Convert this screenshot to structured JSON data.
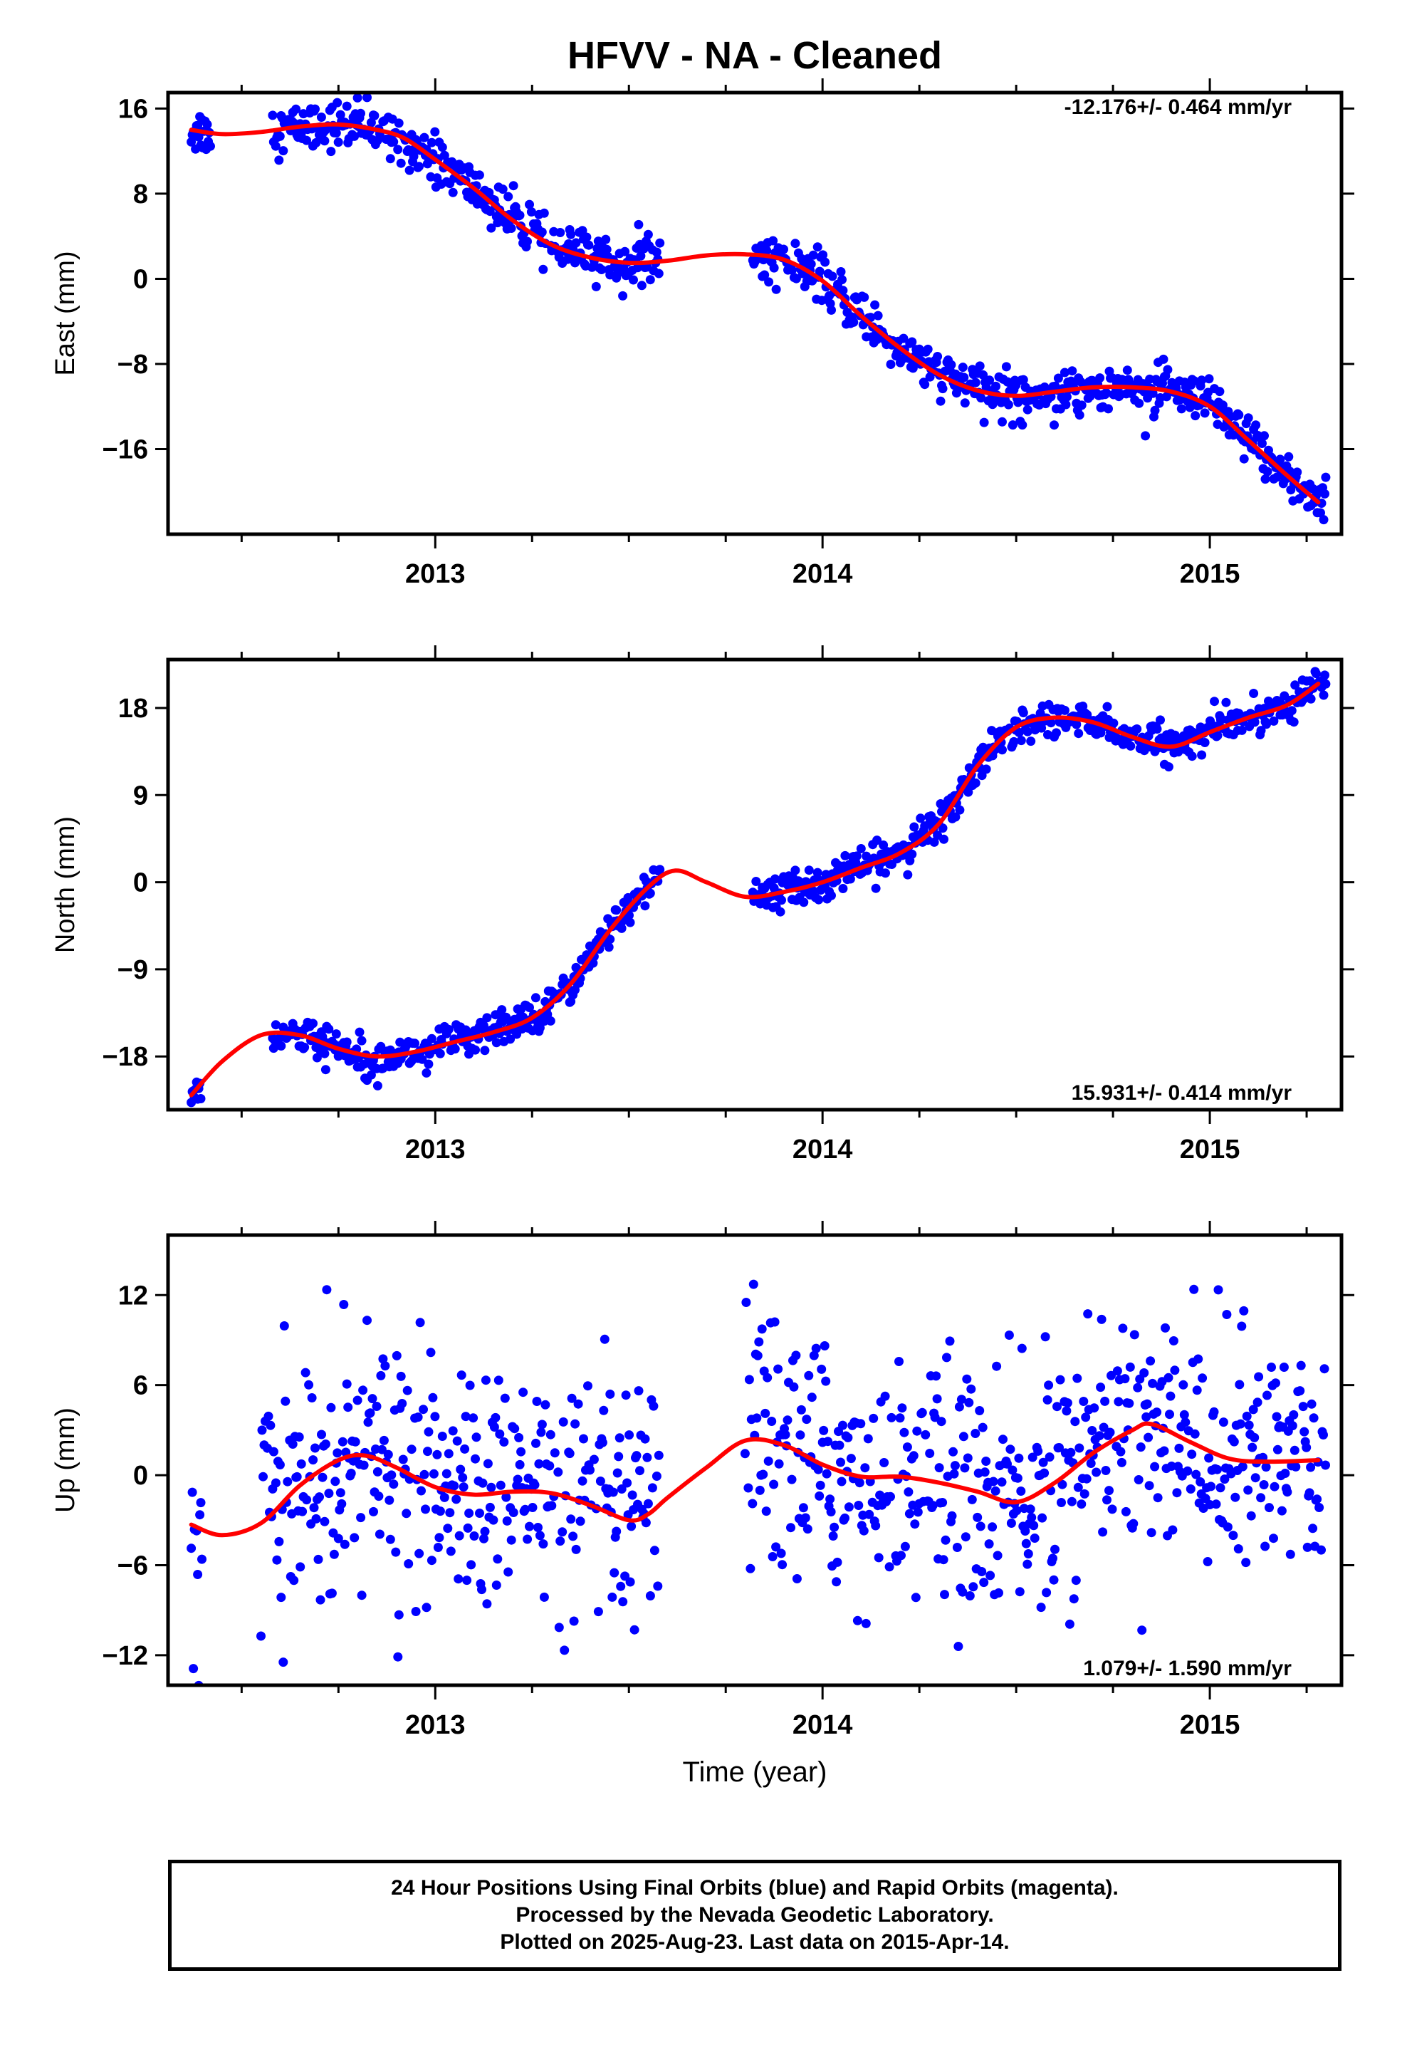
{
  "title": "HFVV  - NA - Cleaned",
  "footer": {
    "line1": "24 Hour Positions Using Final Orbits (blue) and Rapid Orbits (magenta).",
    "line2": "Processed by the Nevada Geodetic Laboratory.",
    "line3": "Plotted on 2025-Aug-23. Last data on 2015-Apr-14."
  },
  "colors": {
    "points": "#0000ff",
    "fit": "#ff0000",
    "axes": "#000000"
  },
  "chart_data": [
    {
      "type": "scatter",
      "id": "east",
      "ylabel": "East (mm)",
      "xlabel": "",
      "rate_label": "-12.176+/- 0.464 mm/yr",
      "rate_position": "top-right",
      "xlim": [
        2012.31,
        2015.34
      ],
      "ylim": [
        -24,
        17.5
      ],
      "yticks": [
        16,
        8,
        0,
        -8,
        -16
      ],
      "xticks": [
        2013,
        2014,
        2015
      ],
      "minor_xticks": [
        2012.5,
        2012.75,
        2013.25,
        2013.5,
        2013.75,
        2014.25,
        2014.5,
        2014.75,
        2015.25
      ],
      "data_segments": [
        [
          2012.37,
          2012.42
        ],
        [
          2012.58,
          2013.58
        ],
        [
          2013.82,
          2015.3
        ]
      ],
      "noise_sd": 1.1,
      "fit_curve": {
        "x": [
          2012.37,
          2012.45,
          2012.55,
          2012.65,
          2012.75,
          2012.85,
          2012.92,
          2013.0,
          2013.1,
          2013.2,
          2013.3,
          2013.4,
          2013.5,
          2013.6,
          2013.7,
          2013.8,
          2013.9,
          2014.0,
          2014.1,
          2014.2,
          2014.3,
          2014.4,
          2014.5,
          2014.6,
          2014.7,
          2014.8,
          2014.9,
          2015.0,
          2015.1,
          2015.2,
          2015.28
        ],
        "y": [
          14.0,
          13.6,
          13.8,
          14.3,
          14.5,
          14.0,
          13.2,
          11.2,
          8.5,
          5.5,
          3.2,
          2.0,
          1.5,
          1.7,
          2.2,
          2.3,
          1.8,
          -0.2,
          -3.5,
          -6.5,
          -9.0,
          -10.5,
          -11.0,
          -10.6,
          -10.2,
          -10.2,
          -10.6,
          -12.0,
          -15.2,
          -18.5,
          -21.0
        ]
      }
    },
    {
      "type": "scatter",
      "id": "north",
      "ylabel": "North (mm)",
      "xlabel": "",
      "rate_label": "15.931+/- 0.414 mm/yr",
      "rate_position": "bottom-right",
      "xlim": [
        2012.31,
        2015.34
      ],
      "ylim": [
        -23.5,
        23
      ],
      "yticks": [
        18,
        9,
        0,
        -9,
        -18
      ],
      "xticks": [
        2013,
        2014,
        2015
      ],
      "minor_xticks": [
        2012.5,
        2012.75,
        2013.25,
        2013.5,
        2013.75,
        2014.25,
        2014.5,
        2014.75,
        2015.25
      ],
      "data_segments": [
        [
          2012.37,
          2012.4
        ],
        [
          2012.58,
          2013.58
        ],
        [
          2013.82,
          2015.3
        ]
      ],
      "noise_sd": 0.9,
      "fit_curve": {
        "x": [
          2012.37,
          2012.45,
          2012.55,
          2012.65,
          2012.75,
          2012.85,
          2012.95,
          2013.05,
          2013.15,
          2013.25,
          2013.35,
          2013.45,
          2013.55,
          2013.62,
          2013.7,
          2013.8,
          2013.9,
          2014.0,
          2014.1,
          2014.2,
          2014.3,
          2014.4,
          2014.5,
          2014.6,
          2014.7,
          2014.8,
          2014.9,
          2015.0,
          2015.1,
          2015.2,
          2015.28
        ],
        "y": [
          -22.0,
          -18.5,
          -15.8,
          -15.8,
          -17.2,
          -18.0,
          -17.5,
          -16.5,
          -15.5,
          -14.0,
          -10.5,
          -5.0,
          -0.5,
          1.2,
          0.0,
          -1.5,
          -1.0,
          0.0,
          1.5,
          3.0,
          6.0,
          12.0,
          16.0,
          17.0,
          16.5,
          15.0,
          14.0,
          15.5,
          17.0,
          18.3,
          20.5
        ]
      }
    },
    {
      "type": "scatter",
      "id": "up",
      "ylabel": "Up (mm)",
      "xlabel": "Time (year)",
      "rate_label": "1.079+/- 1.590 mm/yr",
      "rate_position": "bottom-right",
      "xlim": [
        2012.31,
        2015.34
      ],
      "ylim": [
        -14,
        16
      ],
      "yticks": [
        12,
        6,
        0,
        -6,
        -12
      ],
      "xticks": [
        2013,
        2014,
        2015
      ],
      "minor_xticks": [
        2012.5,
        2012.75,
        2013.25,
        2013.5,
        2013.75,
        2014.25,
        2014.5,
        2014.75,
        2015.25
      ],
      "data_segments": [
        [
          2012.37,
          2012.4
        ],
        [
          2012.55,
          2013.58
        ],
        [
          2013.8,
          2015.3
        ]
      ],
      "noise_sd": 4.0,
      "fit_curve": {
        "x": [
          2012.37,
          2012.45,
          2012.55,
          2012.65,
          2012.75,
          2012.82,
          2012.9,
          2013.0,
          2013.1,
          2013.2,
          2013.3,
          2013.4,
          2013.5,
          2013.55,
          2013.6,
          2013.7,
          2013.8,
          2013.9,
          2014.0,
          2014.1,
          2014.2,
          2014.3,
          2014.4,
          2014.5,
          2014.6,
          2014.7,
          2014.8,
          2014.85,
          2014.95,
          2015.05,
          2015.15,
          2015.28
        ],
        "y": [
          -3.3,
          -4.0,
          -3.2,
          -0.7,
          1.0,
          1.3,
          0.5,
          -0.8,
          -1.3,
          -1.1,
          -1.2,
          -2.0,
          -3.0,
          -2.6,
          -1.5,
          0.5,
          2.3,
          2.0,
          0.7,
          -0.1,
          -0.1,
          -0.5,
          -1.1,
          -1.8,
          -0.5,
          1.5,
          3.0,
          3.4,
          2.2,
          1.1,
          0.9,
          1.0
        ]
      }
    }
  ]
}
